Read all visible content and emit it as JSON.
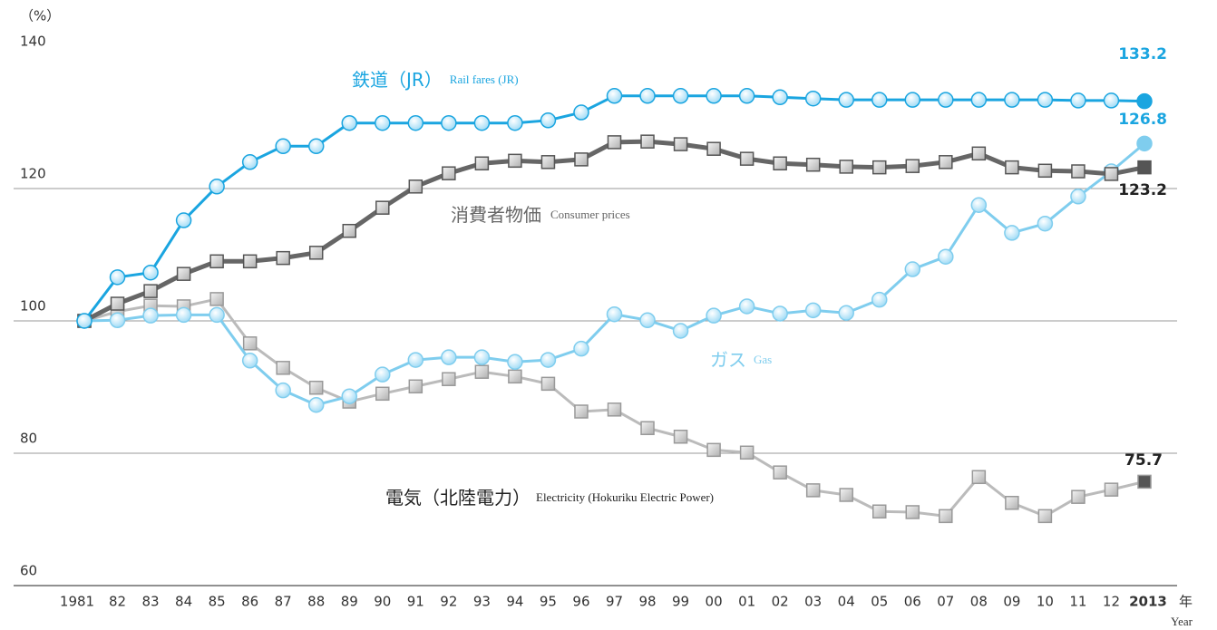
{
  "chart_data": {
    "type": "line",
    "y_label": "（%）",
    "x_label": "年",
    "x_label_en": "Year",
    "categories": [
      "1981",
      "82",
      "83",
      "84",
      "85",
      "86",
      "87",
      "88",
      "89",
      "90",
      "91",
      "92",
      "93",
      "94",
      "95",
      "96",
      "97",
      "98",
      "99",
      "00",
      "01",
      "02",
      "03",
      "04",
      "05",
      "06",
      "07",
      "08",
      "09",
      "10",
      "11",
      "12",
      "2013"
    ],
    "ylim": [
      60,
      140
    ],
    "yticks": [
      60,
      80,
      100,
      120,
      140
    ],
    "series": [
      {
        "name": "鉄道（JR）",
        "name_en": "Rail fares (JR)",
        "color": "#1aa5e0",
        "marker": "circle",
        "values": [
          100,
          106.6,
          107.3,
          115.2,
          120.3,
          124,
          126.4,
          126.4,
          129.9,
          129.9,
          129.9,
          129.9,
          129.9,
          129.9,
          130.3,
          131.5,
          134,
          134,
          134,
          134,
          134,
          133.8,
          133.6,
          133.4,
          133.4,
          133.4,
          133.4,
          133.4,
          133.4,
          133.4,
          133.3,
          133.3,
          133.2
        ]
      },
      {
        "name": "消費者物価",
        "name_en": "Consumer prices",
        "color": "#666666",
        "marker": "square",
        "values": [
          100,
          102.6,
          104.5,
          107.1,
          109,
          109,
          109.5,
          110.3,
          113.6,
          117.1,
          120.3,
          122.3,
          123.8,
          124.2,
          124,
          124.4,
          127,
          127.1,
          126.7,
          126,
          124.5,
          123.8,
          123.6,
          123.3,
          123.2,
          123.4,
          124,
          125.3,
          123.2,
          122.7,
          122.6,
          122.2,
          123.2
        ]
      },
      {
        "name": "ガス",
        "name_en": "Gas",
        "color": "#7fcdee",
        "marker": "circle",
        "values": [
          100,
          100.1,
          100.8,
          100.9,
          100.9,
          94,
          89.5,
          87.3,
          88.6,
          91.9,
          94.1,
          94.5,
          94.5,
          93.8,
          94.1,
          95.8,
          101,
          100.1,
          98.5,
          100.8,
          102.2,
          101.1,
          101.6,
          101.2,
          103.2,
          107.8,
          109.7,
          117.5,
          113.3,
          114.7,
          118.8,
          122.6,
          126.8
        ]
      },
      {
        "name": "電気（北陸電力）",
        "name_en": "Electricity (Hokuriku Electric Power)",
        "color": "#bbbbbb",
        "marker": "square",
        "values": [
          100,
          101.4,
          102.3,
          102.2,
          103.3,
          96.6,
          92.9,
          89.9,
          87.8,
          89,
          90.1,
          91.2,
          92.3,
          91.6,
          90.5,
          86.3,
          86.6,
          83.8,
          82.5,
          80.5,
          80.1,
          77.1,
          74.4,
          73.7,
          71.2,
          71.1,
          70.5,
          76.4,
          72.5,
          70.5,
          73.4,
          74.5,
          75.7
        ]
      }
    ]
  }
}
